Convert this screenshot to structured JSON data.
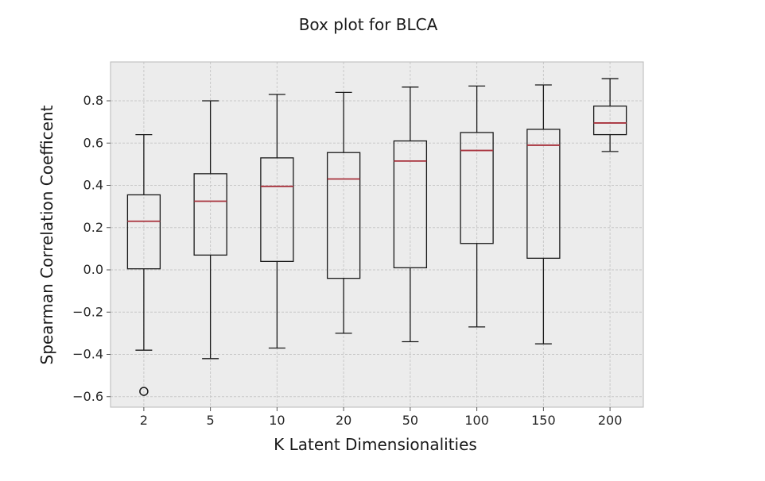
{
  "chart_data": {
    "type": "box",
    "title": "Box plot for BLCA",
    "xlabel": "K Latent Dimensionalities",
    "ylabel": "Spearman Correlation Coefficent",
    "categories": [
      "2",
      "5",
      "10",
      "20",
      "50",
      "100",
      "150",
      "200"
    ],
    "yticks": [
      -0.6,
      -0.4,
      -0.2,
      0.0,
      0.2,
      0.4,
      0.6,
      0.8
    ],
    "ytick_labels": [
      "−0.6",
      "−0.4",
      "−0.2",
      "0.0",
      "0.2",
      "0.4",
      "0.6",
      "0.8"
    ],
    "ylim": [
      -0.65,
      0.95
    ],
    "grid": true,
    "boxes": [
      {
        "category": "2",
        "whisker_low": -0.38,
        "q1": 0.005,
        "median": 0.23,
        "q3": 0.355,
        "whisker_high": 0.64,
        "outliers": [
          -0.575
        ]
      },
      {
        "category": "5",
        "whisker_low": -0.42,
        "q1": 0.07,
        "median": 0.325,
        "q3": 0.455,
        "whisker_high": 0.8,
        "outliers": []
      },
      {
        "category": "10",
        "whisker_low": -0.37,
        "q1": 0.04,
        "median": 0.395,
        "q3": 0.53,
        "whisker_high": 0.83,
        "outliers": []
      },
      {
        "category": "20",
        "whisker_low": -0.3,
        "q1": -0.04,
        "median": 0.43,
        "q3": 0.555,
        "whisker_high": 0.84,
        "outliers": []
      },
      {
        "category": "50",
        "whisker_low": -0.34,
        "q1": 0.01,
        "median": 0.515,
        "q3": 0.61,
        "whisker_high": 0.865,
        "outliers": []
      },
      {
        "category": "100",
        "whisker_low": -0.27,
        "q1": 0.125,
        "median": 0.565,
        "q3": 0.65,
        "whisker_high": 0.87,
        "outliers": []
      },
      {
        "category": "150",
        "whisker_low": -0.35,
        "q1": 0.055,
        "median": 0.59,
        "q3": 0.665,
        "whisker_high": 0.875,
        "outliers": []
      },
      {
        "category": "200",
        "whisker_low": 0.56,
        "q1": 0.64,
        "median": 0.695,
        "q3": 0.775,
        "whisker_high": 0.905,
        "outliers": []
      }
    ],
    "colors": {
      "plot_background": "#ececec",
      "box_stroke": "#1a1a1a",
      "median": "#a8323c",
      "grid": "#c8c8c8"
    }
  }
}
